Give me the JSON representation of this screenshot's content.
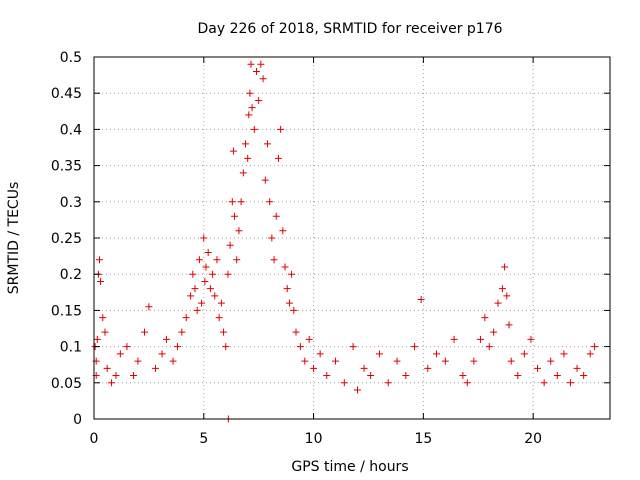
{
  "chart_data": {
    "type": "scatter",
    "title": "Day 226 of 2018, SRMTID for receiver p176",
    "xlabel": "GPS time / hours",
    "ylabel": "SRMTID / TECUs",
    "xlim": [
      0,
      23.5
    ],
    "ylim": [
      0,
      0.5
    ],
    "x_ticks": [
      0,
      5,
      10,
      15,
      20
    ],
    "x_tick_labels": [
      "0",
      "5",
      "10",
      "15",
      "20"
    ],
    "y_ticks": [
      0,
      0.05,
      0.1,
      0.15,
      0.2,
      0.25,
      0.3,
      0.35,
      0.4,
      0.45,
      0.5
    ],
    "y_tick_labels": [
      "0",
      "0.05",
      "0.1",
      "0.15",
      "0.2",
      "0.25",
      "0.3",
      "0.35",
      "0.4",
      "0.45",
      "0.5"
    ],
    "grid": true,
    "marker": "+",
    "color": "#e00000",
    "series": [
      {
        "name": "SRMTID",
        "points": [
          [
            0.05,
            0.1
          ],
          [
            0.1,
            0.08
          ],
          [
            0.15,
            0.11
          ],
          [
            0.2,
            0.2
          ],
          [
            0.25,
            0.22
          ],
          [
            0.3,
            0.19
          ],
          [
            0.1,
            0.06
          ],
          [
            0.4,
            0.14
          ],
          [
            0.5,
            0.12
          ],
          [
            0.6,
            0.07
          ],
          [
            0.8,
            0.05
          ],
          [
            1.0,
            0.06
          ],
          [
            1.2,
            0.09
          ],
          [
            1.5,
            0.1
          ],
          [
            1.8,
            0.06
          ],
          [
            2.0,
            0.08
          ],
          [
            2.3,
            0.12
          ],
          [
            2.5,
            0.155
          ],
          [
            2.8,
            0.07
          ],
          [
            3.1,
            0.09
          ],
          [
            3.3,
            0.11
          ],
          [
            3.6,
            0.08
          ],
          [
            3.8,
            0.1
          ],
          [
            4.0,
            0.12
          ],
          [
            4.2,
            0.14
          ],
          [
            4.4,
            0.17
          ],
          [
            4.5,
            0.2
          ],
          [
            4.6,
            0.18
          ],
          [
            4.7,
            0.15
          ],
          [
            4.8,
            0.22
          ],
          [
            4.9,
            0.16
          ],
          [
            5.0,
            0.25
          ],
          [
            5.05,
            0.19
          ],
          [
            5.1,
            0.21
          ],
          [
            5.2,
            0.23
          ],
          [
            5.3,
            0.18
          ],
          [
            5.4,
            0.2
          ],
          [
            5.5,
            0.17
          ],
          [
            5.6,
            0.22
          ],
          [
            5.7,
            0.14
          ],
          [
            5.8,
            0.16
          ],
          [
            5.9,
            0.12
          ],
          [
            6.0,
            0.1
          ],
          [
            6.1,
            0.2
          ],
          [
            6.2,
            0.24
          ],
          [
            6.3,
            0.3
          ],
          [
            6.35,
            0.37
          ],
          [
            6.4,
            0.28
          ],
          [
            6.5,
            0.22
          ],
          [
            6.6,
            0.26
          ],
          [
            6.7,
            0.3
          ],
          [
            6.8,
            0.34
          ],
          [
            6.9,
            0.38
          ],
          [
            7.0,
            0.36
          ],
          [
            7.05,
            0.42
          ],
          [
            7.1,
            0.45
          ],
          [
            7.15,
            0.49
          ],
          [
            7.2,
            0.43
          ],
          [
            7.3,
            0.4
          ],
          [
            7.4,
            0.48
          ],
          [
            7.5,
            0.44
          ],
          [
            7.6,
            0.49
          ],
          [
            7.7,
            0.47
          ],
          [
            7.8,
            0.33
          ],
          [
            7.9,
            0.38
          ],
          [
            8.0,
            0.3
          ],
          [
            8.1,
            0.25
          ],
          [
            8.2,
            0.22
          ],
          [
            8.3,
            0.28
          ],
          [
            8.4,
            0.36
          ],
          [
            8.5,
            0.4
          ],
          [
            8.6,
            0.26
          ],
          [
            8.7,
            0.21
          ],
          [
            8.8,
            0.18
          ],
          [
            8.9,
            0.16
          ],
          [
            9.0,
            0.2
          ],
          [
            9.1,
            0.15
          ],
          [
            9.2,
            0.12
          ],
          [
            9.4,
            0.1
          ],
          [
            9.6,
            0.08
          ],
          [
            9.8,
            0.11
          ],
          [
            10.0,
            0.07
          ],
          [
            10.3,
            0.09
          ],
          [
            10.6,
            0.06
          ],
          [
            11.0,
            0.08
          ],
          [
            11.4,
            0.05
          ],
          [
            11.8,
            0.1
          ],
          [
            12.0,
            0.04
          ],
          [
            12.3,
            0.07
          ],
          [
            12.6,
            0.06
          ],
          [
            13.0,
            0.09
          ],
          [
            13.4,
            0.05
          ],
          [
            13.8,
            0.08
          ],
          [
            14.2,
            0.06
          ],
          [
            14.6,
            0.1
          ],
          [
            14.9,
            0.165
          ],
          [
            15.2,
            0.07
          ],
          [
            15.6,
            0.09
          ],
          [
            16.0,
            0.08
          ],
          [
            16.4,
            0.11
          ],
          [
            16.8,
            0.06
          ],
          [
            17.0,
            0.05
          ],
          [
            17.3,
            0.08
          ],
          [
            17.6,
            0.11
          ],
          [
            17.8,
            0.14
          ],
          [
            18.0,
            0.1
          ],
          [
            18.2,
            0.12
          ],
          [
            18.4,
            0.16
          ],
          [
            18.6,
            0.18
          ],
          [
            18.7,
            0.21
          ],
          [
            18.8,
            0.17
          ],
          [
            18.9,
            0.13
          ],
          [
            19.0,
            0.08
          ],
          [
            19.3,
            0.06
          ],
          [
            19.6,
            0.09
          ],
          [
            19.9,
            0.11
          ],
          [
            20.2,
            0.07
          ],
          [
            20.5,
            0.05
          ],
          [
            20.8,
            0.08
          ],
          [
            21.1,
            0.06
          ],
          [
            21.4,
            0.09
          ],
          [
            21.7,
            0.05
          ],
          [
            22.0,
            0.07
          ],
          [
            22.3,
            0.06
          ],
          [
            22.6,
            0.09
          ],
          [
            22.8,
            0.1
          ],
          [
            6.12,
            0.0
          ]
        ]
      }
    ]
  }
}
